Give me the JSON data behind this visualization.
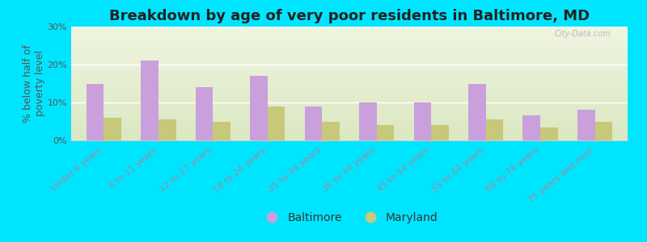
{
  "title": "Breakdown by age of very poor residents in Baltimore, MD",
  "ylabel": "% below half of\npoverty level",
  "categories": [
    "Under 6 years",
    "6 to 11 years",
    "12 to 17 years",
    "18 to 24 years",
    "25 to 34 years",
    "35 to 44 years",
    "45 to 54 years",
    "55 to 64 years",
    "65 to 74 years",
    "75 years and over"
  ],
  "baltimore_values": [
    15.0,
    21.0,
    14.0,
    17.0,
    9.0,
    10.0,
    10.0,
    15.0,
    6.5,
    8.0
  ],
  "maryland_values": [
    6.0,
    5.5,
    5.0,
    9.0,
    5.0,
    4.0,
    4.0,
    5.5,
    3.5,
    5.0
  ],
  "baltimore_color": "#c9a0dc",
  "maryland_color": "#c8c87a",
  "bg_color_outer": "#00e5ff",
  "bg_color_plot": "#e8f0d0",
  "ylim": [
    0,
    30
  ],
  "yticks": [
    0,
    10,
    20,
    30
  ],
  "ytick_labels": [
    "0%",
    "10%",
    "20%",
    "30%"
  ],
  "title_fontsize": 13,
  "ylabel_fontsize": 9,
  "legend_fontsize": 10,
  "tick_fontsize": 8,
  "xtick_color": "#9b8aa0",
  "watermark": "City-Data.com",
  "bar_width": 0.32
}
